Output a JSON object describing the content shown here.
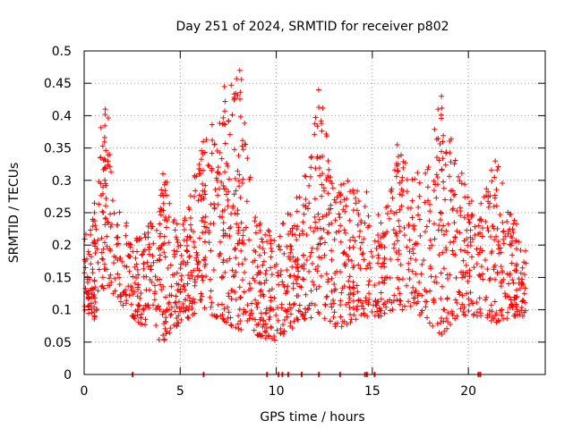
{
  "chart_data": {
    "type": "scatter",
    "title": "Day 251 of 2024, SRMTID for receiver p802",
    "xlabel": "GPS time / hours",
    "ylabel": "SRMTID / TECUs",
    "xlim": [
      0,
      24
    ],
    "ylim": [
      0,
      0.5
    ],
    "xticks": [
      0,
      5,
      10,
      15,
      20
    ],
    "xtick_labels": [
      "0",
      "5",
      "10",
      "15",
      "20"
    ],
    "yticks": [
      0,
      0.05,
      0.1,
      0.15,
      0.2,
      0.25,
      0.3,
      0.35,
      0.4,
      0.45,
      0.5
    ],
    "ytick_labels": [
      "0",
      "0.05",
      "0.1",
      "0.15",
      "0.2",
      "0.25",
      "0.3",
      "0.35",
      "0.4",
      "0.45",
      "0.5"
    ],
    "grid": true,
    "marker": "+",
    "color": "#ff0000",
    "data_extent_hours": [
      0,
      23
    ],
    "zero_value_times": [
      2.5,
      6.2,
      9.5,
      10.1,
      10.3,
      10.6,
      11.3,
      12.2,
      13.3,
      14.6,
      14.7,
      15.1,
      20.5,
      20.6
    ],
    "envelope": [
      {
        "x": 0.0,
        "lo": 0.1,
        "hi": 0.21
      },
      {
        "x": 0.5,
        "lo": 0.08,
        "hi": 0.26
      },
      {
        "x": 1.1,
        "lo": 0.14,
        "hi": 0.41
      },
      {
        "x": 1.6,
        "lo": 0.12,
        "hi": 0.27
      },
      {
        "x": 2.5,
        "lo": 0.09,
        "hi": 0.22
      },
      {
        "x": 3.5,
        "lo": 0.06,
        "hi": 0.24
      },
      {
        "x": 4.1,
        "lo": 0.05,
        "hi": 0.31
      },
      {
        "x": 5.0,
        "lo": 0.08,
        "hi": 0.22
      },
      {
        "x": 6.2,
        "lo": 0.1,
        "hi": 0.36
      },
      {
        "x": 7.3,
        "lo": 0.08,
        "hi": 0.44
      },
      {
        "x": 8.1,
        "lo": 0.07,
        "hi": 0.47
      },
      {
        "x": 9.0,
        "lo": 0.06,
        "hi": 0.24
      },
      {
        "x": 10.0,
        "lo": 0.05,
        "hi": 0.22
      },
      {
        "x": 11.2,
        "lo": 0.08,
        "hi": 0.28
      },
      {
        "x": 12.2,
        "lo": 0.09,
        "hi": 0.44
      },
      {
        "x": 13.2,
        "lo": 0.07,
        "hi": 0.3
      },
      {
        "x": 14.5,
        "lo": 0.09,
        "hi": 0.3
      },
      {
        "x": 15.5,
        "lo": 0.09,
        "hi": 0.24
      },
      {
        "x": 16.3,
        "lo": 0.1,
        "hi": 0.35
      },
      {
        "x": 17.2,
        "lo": 0.1,
        "hi": 0.31
      },
      {
        "x": 18.6,
        "lo": 0.06,
        "hi": 0.43
      },
      {
        "x": 19.4,
        "lo": 0.09,
        "hi": 0.33
      },
      {
        "x": 20.5,
        "lo": 0.09,
        "hi": 0.26
      },
      {
        "x": 21.4,
        "lo": 0.08,
        "hi": 0.33
      },
      {
        "x": 22.3,
        "lo": 0.09,
        "hi": 0.25
      },
      {
        "x": 23.0,
        "lo": 0.09,
        "hi": 0.19
      }
    ],
    "spikes": [
      {
        "x": 1.1,
        "y": 0.41
      },
      {
        "x": 4.1,
        "y": 0.31
      },
      {
        "x": 6.2,
        "y": 0.36
      },
      {
        "x": 7.3,
        "y": 0.445
      },
      {
        "x": 8.1,
        "y": 0.47
      },
      {
        "x": 12.2,
        "y": 0.44
      },
      {
        "x": 16.3,
        "y": 0.355
      },
      {
        "x": 18.6,
        "y": 0.43
      },
      {
        "x": 21.4,
        "y": 0.33
      }
    ]
  }
}
